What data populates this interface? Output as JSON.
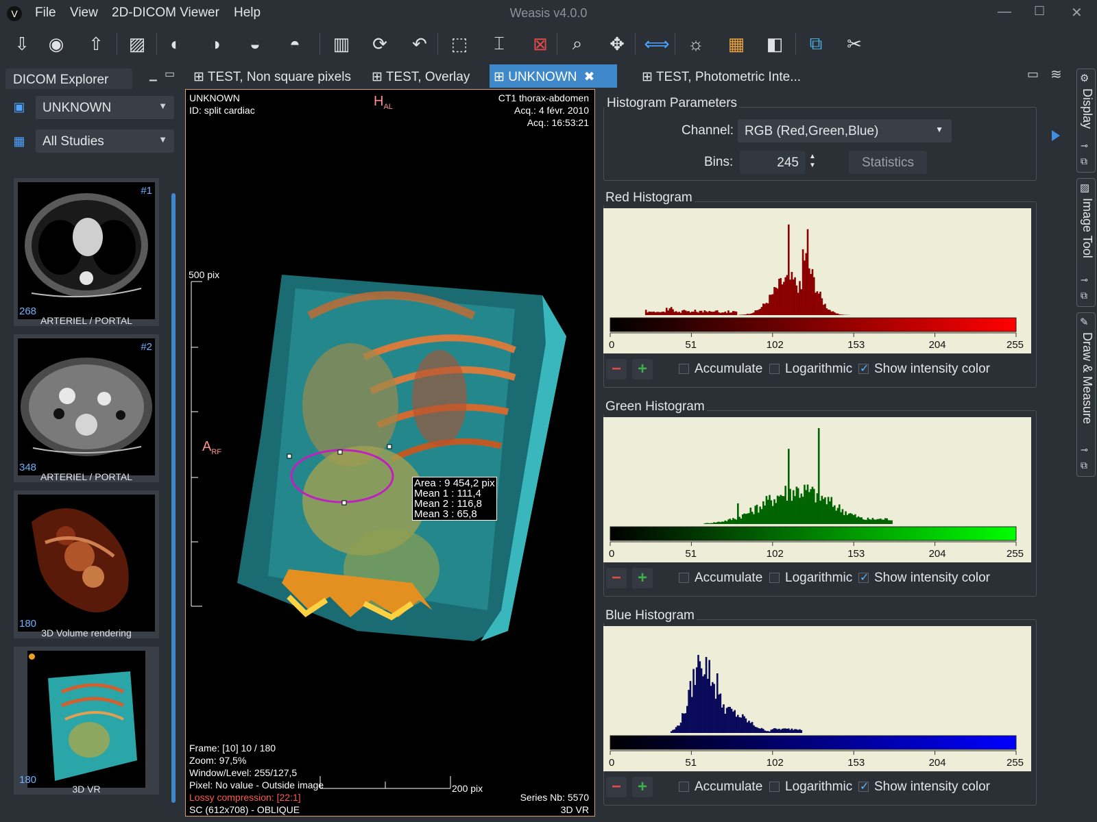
{
  "app": {
    "title": "Weasis v4.0.0",
    "menu": [
      "File",
      "View",
      "2D-DICOM Viewer",
      "Help"
    ]
  },
  "toolbar": {
    "icons": [
      "import-dicom-icon",
      "import-cd-icon",
      "export-icon",
      "import-image-icon",
      "mouse-left-icon",
      "mouse-middle-icon",
      "mouse-right-icon",
      "mouse-wheel-icon",
      "layout-icon",
      "sync-icon",
      "reset-icon",
      "select-icon",
      "measure-icon",
      "delete-selection-icon",
      "zoom-icon",
      "pan-icon",
      "navigation-icon",
      "brightness-icon",
      "color-lut-icon",
      "invert-icon",
      "export-view-icon",
      "tools-icon"
    ]
  },
  "explorer": {
    "title": "DICOM Explorer",
    "patient": "UNKNOWN",
    "studies": "All Studies",
    "thumbnails": [
      {
        "index": "#1",
        "count": "268",
        "label": "ARTERIEL / PORTAL"
      },
      {
        "index": "#2",
        "count": "348",
        "label": "ARTERIEL / PORTAL"
      },
      {
        "index": "",
        "count": "180",
        "label": "3D Volume rendering"
      },
      {
        "index": "",
        "count": "180",
        "label": "3D VR"
      }
    ]
  },
  "tabs": [
    {
      "label": "TEST, Non square pixels"
    },
    {
      "label": "TEST, Overlay"
    },
    {
      "label": "UNKNOWN"
    },
    {
      "label": "TEST, Photometric Inte..."
    }
  ],
  "viewer": {
    "top_left": [
      "UNKNOWN",
      "ID: split cardiac"
    ],
    "top_right": [
      "CT1 thorax-abdomen",
      "Acq.: 4 févr. 2010",
      "Acq.: 16:53:21"
    ],
    "orient_top": "H",
    "orient_top_sub": "AL",
    "orient_left": "A",
    "orient_left_sub": "RF",
    "ruler_v": "500 pix",
    "ruler_h": "200 pix",
    "roi": [
      "Area : 9 454,2 pix",
      "Mean 1 : 111,4",
      "Mean 2 : 116,8",
      "Mean 3 : 65,8"
    ],
    "bottom_left": [
      "Frame: [10] 10 / 180",
      "Zoom: 97,5%",
      "Window/Level: 255/127,5",
      "Pixel: No value - Outside image"
    ],
    "lossy": "Lossy compression:  [22:1]",
    "modality": "SC (612x708) - OBLIQUE",
    "series": "Series Nb: 5570",
    "series_desc": "3D VR"
  },
  "histogram_params": {
    "title": "Histogram Parameters",
    "channel_label": "Channel:",
    "channel": "RGB (Red,Green,Blue)",
    "bins_label": "Bins:",
    "bins": "245",
    "statistics_button": "Statistics"
  },
  "histograms": [
    {
      "title": "Red Histogram",
      "color": "#8b0000",
      "grad_end": "#ff0000"
    },
    {
      "title": "Green Histogram",
      "color": "#006400",
      "grad_end": "#00ff00"
    },
    {
      "title": "Blue Histogram",
      "color": "#0a0a5a",
      "grad_end": "#0000ff"
    }
  ],
  "hist_axis": [
    "0",
    "51",
    "102",
    "153",
    "204",
    "255"
  ],
  "hist_controls": {
    "accumulate": "Accumulate",
    "logarithmic": "Logarithmic",
    "show_intensity": "Show intensity color"
  },
  "dock": {
    "display": "Display",
    "image_tool": "Image Tool",
    "draw_measure": "Draw & Measure"
  }
}
